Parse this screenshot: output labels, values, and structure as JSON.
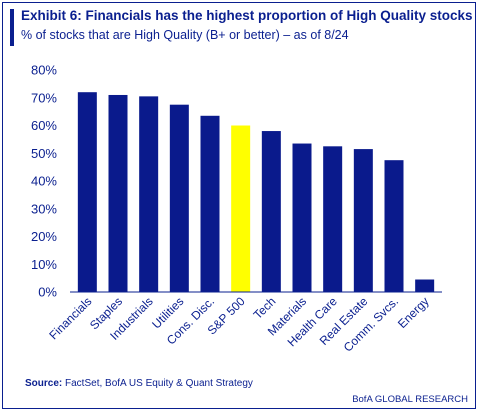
{
  "header": {
    "title": "Exhibit 6: Financials has the highest proportion of High Quality stocks",
    "subtitle": "% of stocks that are High Quality (B+ or better) – as of 8/24"
  },
  "footer": {
    "source_label": "Source:",
    "source_text": " FactSet, BofA US Equity & Quant Strategy",
    "brand": "BofA GLOBAL RESEARCH"
  },
  "colors": {
    "bar": "#0a1a8c",
    "highlight": "#ffff00",
    "text": "#0a1f8f"
  },
  "chart_data": {
    "type": "bar",
    "categories": [
      "Financials",
      "Staples",
      "Industrials",
      "Utilities",
      "Cons. Disc.",
      "S&P 500",
      "Tech",
      "Materials",
      "Health Care",
      "Real Estate",
      "Comm. Svcs.",
      "Energy"
    ],
    "values": [
      72,
      71,
      70.5,
      67.5,
      63.5,
      60,
      58,
      53.5,
      52.5,
      51.5,
      47.5,
      4.5
    ],
    "highlight_category": "S&P 500",
    "ylim": [
      0,
      80
    ],
    "yticks": [
      0,
      10,
      20,
      30,
      40,
      50,
      60,
      70,
      80
    ],
    "ytick_labels": [
      "0%",
      "10%",
      "20%",
      "30%",
      "40%",
      "50%",
      "60%",
      "70%",
      "80%"
    ],
    "grid": false,
    "legend": "none"
  }
}
